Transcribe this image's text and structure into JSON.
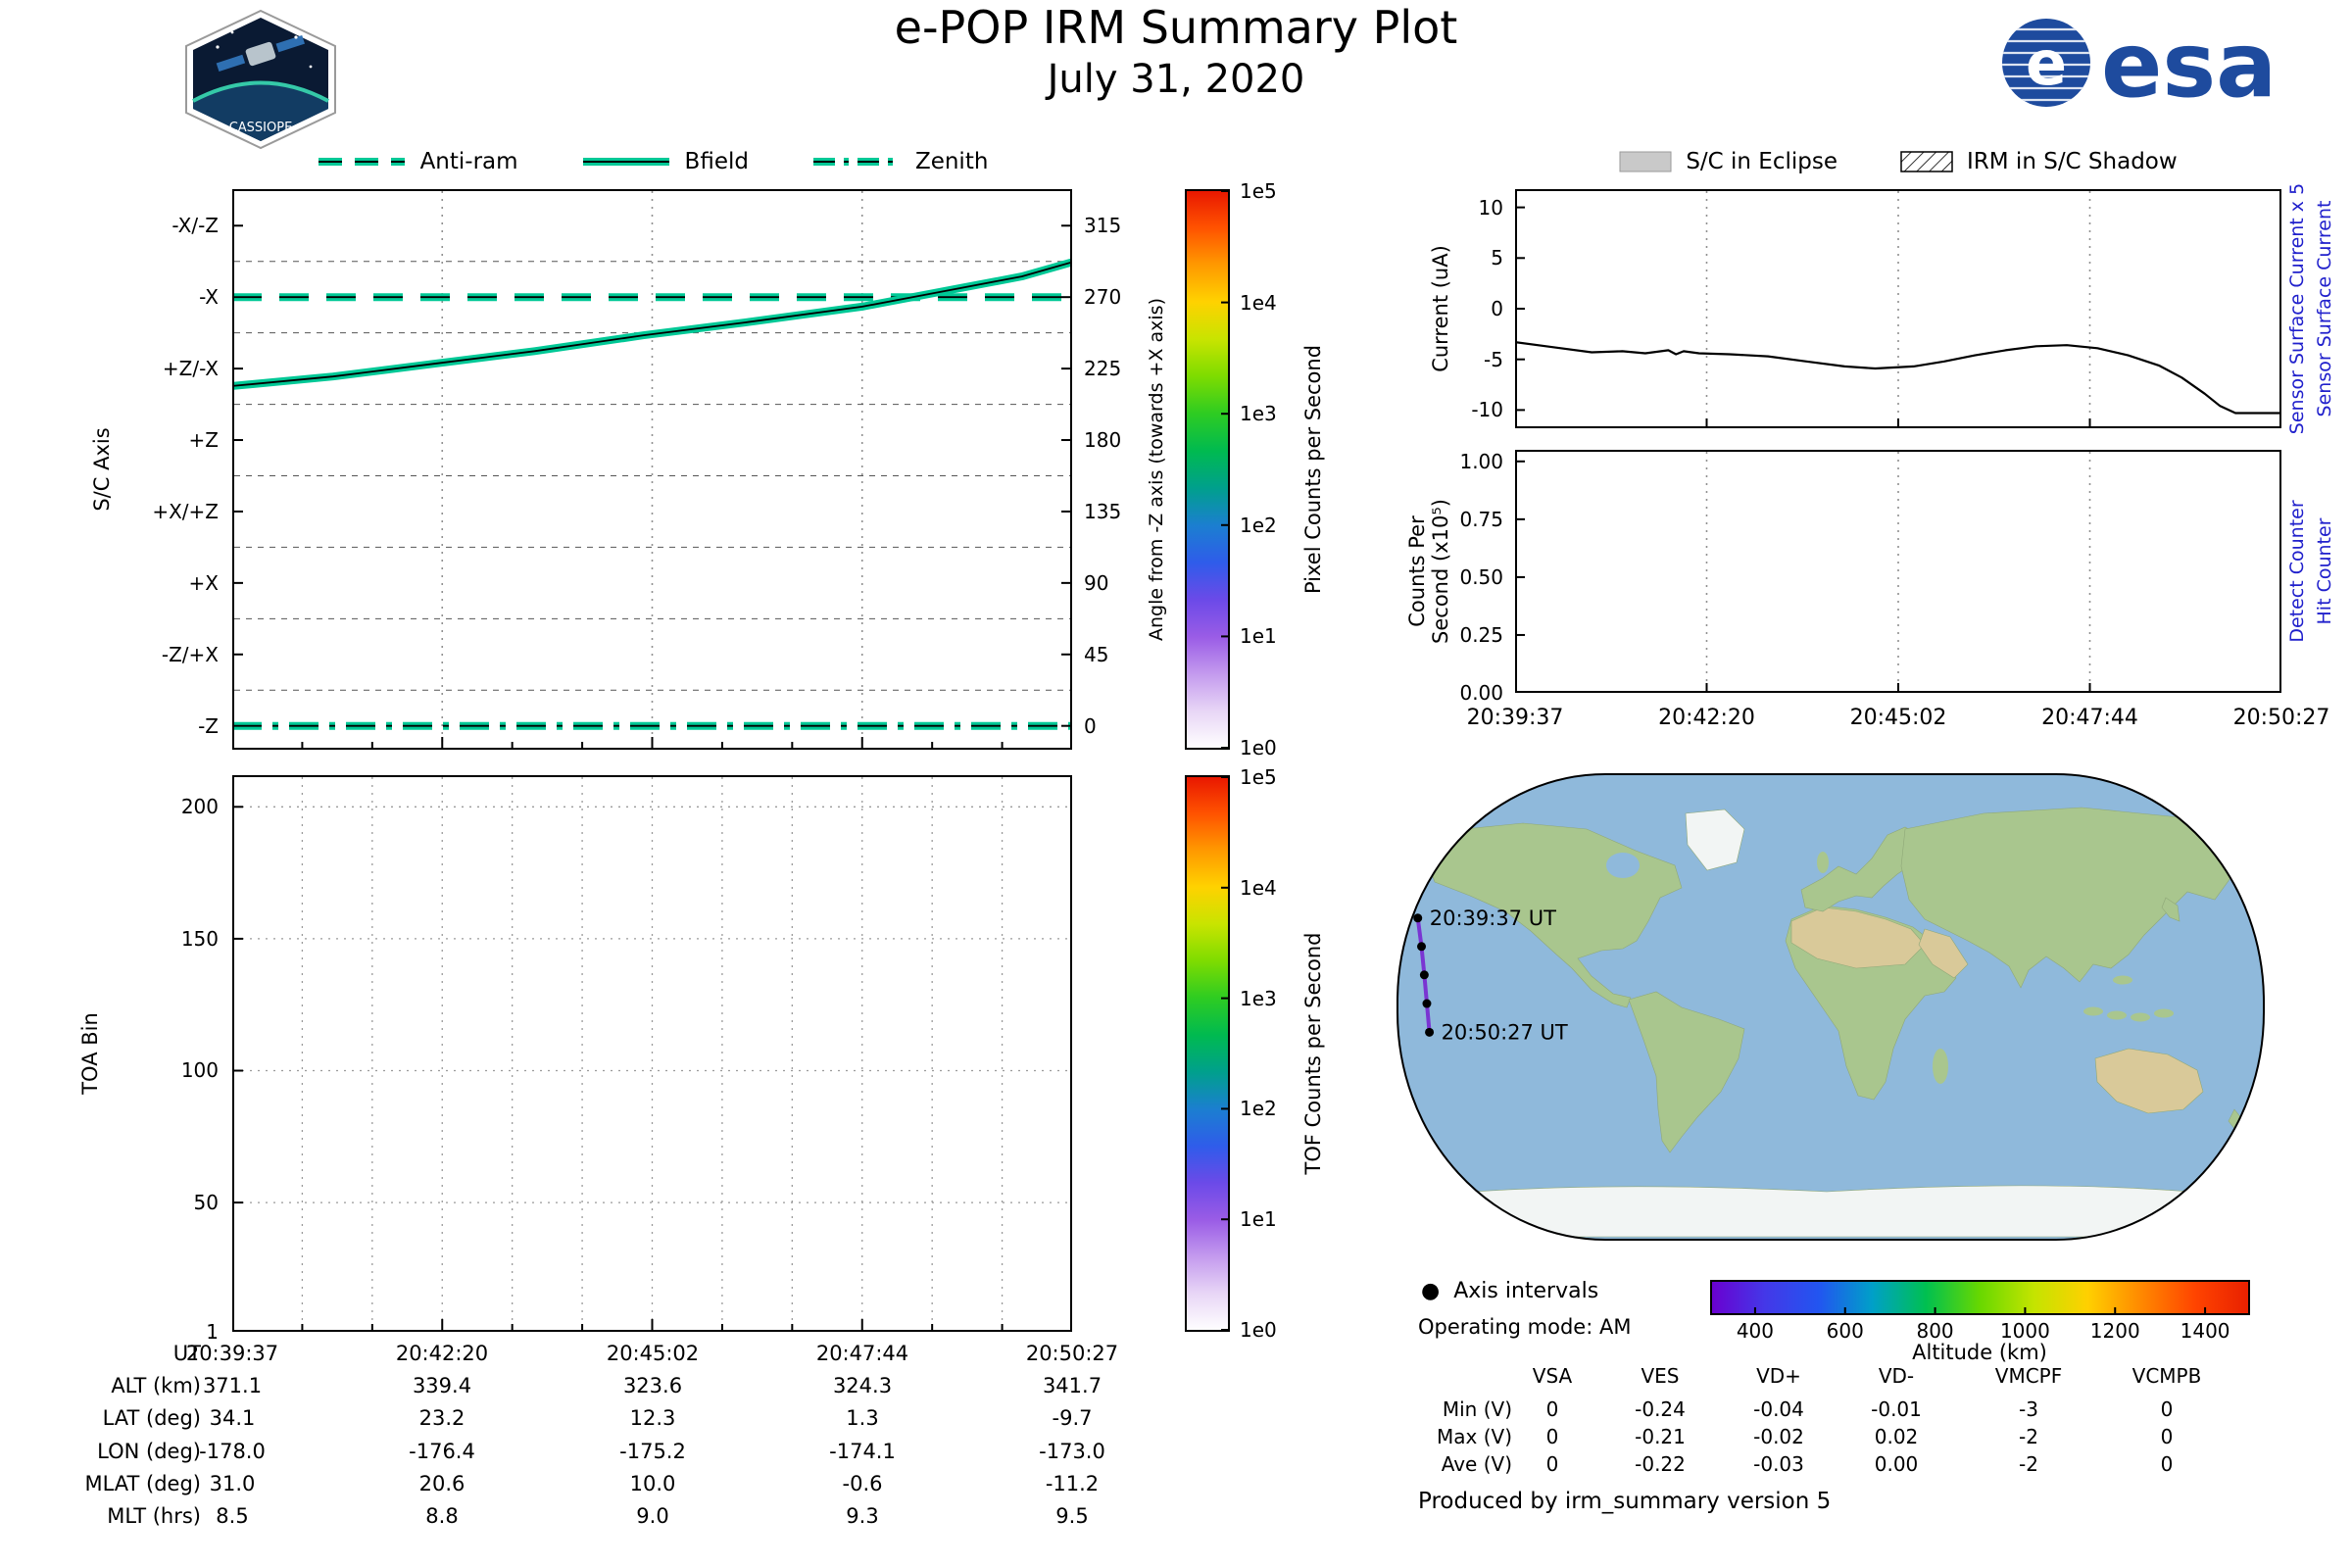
{
  "header": {
    "title": "e-POP IRM Summary Plot",
    "date": "July 31, 2020",
    "esa_wordmark": "esa",
    "patch_text": "CASSIOPE"
  },
  "legend_left": {
    "items": [
      {
        "label": "Anti-ram"
      },
      {
        "label": "Bfield"
      },
      {
        "label": "Zenith"
      }
    ]
  },
  "legend_right": {
    "items": [
      {
        "label": "S/C in Eclipse"
      },
      {
        "label": "IRM in S/C Shadow"
      }
    ]
  },
  "time_ticks": [
    "20:39:37",
    "20:42:20",
    "20:45:02",
    "20:47:44",
    "20:50:27"
  ],
  "chart_data": [
    {
      "id": "sc_axis",
      "type": "line",
      "ylabel": "S/C Axis",
      "ylabel_right": "Angle from -Z axis (towards +X axis)",
      "ylim": [
        -15,
        338
      ],
      "yticks_left": [
        {
          "value": 0,
          "label": "-Z"
        },
        {
          "value": 45,
          "label": "-Z/+X"
        },
        {
          "value": 90,
          "label": "+X"
        },
        {
          "value": 135,
          "label": "+X/+Z"
        },
        {
          "value": 180,
          "label": "+Z"
        },
        {
          "value": 225,
          "label": "+Z/-X"
        },
        {
          "value": 270,
          "label": "-X"
        },
        {
          "value": 315,
          "label": "-X/-Z"
        }
      ],
      "yticks_right": [
        0,
        45,
        90,
        135,
        180,
        225,
        270,
        315
      ],
      "grid_y_dashed": [
        22.5,
        67.5,
        112.5,
        157.5,
        202.5,
        247.5,
        292.5
      ],
      "series": [
        {
          "name": "Anti-ram",
          "style": "dashed",
          "x": [
            0,
            1
          ],
          "values": [
            270,
            270
          ]
        },
        {
          "name": "Bfield",
          "style": "solid",
          "x": [
            0,
            0.12,
            0.24,
            0.36,
            0.49,
            0.61,
            0.75,
            0.86,
            0.94,
            1.0
          ],
          "values": [
            214,
            220,
            228,
            236,
            246,
            254,
            264,
            275,
            283,
            292
          ]
        },
        {
          "name": "Zenith",
          "style": "dashdot",
          "x": [
            0,
            1
          ],
          "values": [
            0,
            0
          ]
        }
      ],
      "colorbar": {
        "label": "Pixel Counts per Second",
        "ticks": [
          "1e0",
          "1e1",
          "1e2",
          "1e3",
          "1e4",
          "1e5"
        ]
      }
    },
    {
      "id": "toa_bin",
      "type": "heatmap",
      "ylabel": "TOA Bin",
      "ylim": [
        1,
        212
      ],
      "yticks": [
        1,
        50,
        100,
        150,
        200
      ],
      "series": [],
      "colorbar": {
        "label": "TOF Counts per Second",
        "ticks": [
          "1e0",
          "1e1",
          "1e2",
          "1e3",
          "1e4",
          "1e5"
        ]
      }
    },
    {
      "id": "sensor_current",
      "type": "line",
      "ylabel": "Current (uA)",
      "right_labels": [
        "Sensor Surface Current x 5",
        "Sensor Surface Current"
      ],
      "ylim": [
        -11.8,
        11.8
      ],
      "yticks": [
        -10,
        -5,
        0,
        5,
        10
      ],
      "series": [
        {
          "name": "Sensor Surface Current",
          "color": "#000000",
          "x": [
            0,
            0.05,
            0.1,
            0.14,
            0.17,
            0.2,
            0.21,
            0.22,
            0.24,
            0.28,
            0.33,
            0.38,
            0.43,
            0.47,
            0.52,
            0.56,
            0.6,
            0.64,
            0.68,
            0.72,
            0.76,
            0.8,
            0.84,
            0.87,
            0.9,
            0.92,
            0.94,
            1.0
          ],
          "values": [
            -3.3,
            -3.8,
            -4.3,
            -4.2,
            -4.4,
            -4.1,
            -4.5,
            -4.2,
            -4.4,
            -4.5,
            -4.7,
            -5.2,
            -5.7,
            -5.9,
            -5.7,
            -5.2,
            -4.6,
            -4.1,
            -3.7,
            -3.6,
            -3.9,
            -4.6,
            -5.6,
            -6.8,
            -8.4,
            -9.6,
            -10.3,
            -10.3
          ]
        }
      ]
    },
    {
      "id": "hit_counts",
      "type": "line",
      "ylabel_line1": "Counts Per",
      "ylabel_line2": "Second (x10⁵)",
      "right_labels": [
        "Detect Counter",
        "Hit Counter"
      ],
      "ylim": [
        0,
        1.05
      ],
      "yticks": [
        "0.00",
        "0.25",
        "0.50",
        "0.75",
        "1.00"
      ],
      "series": [
        {
          "name": "Detect Counter",
          "color": "#00008b",
          "x": [
            0,
            1
          ],
          "values": [
            0,
            0
          ]
        }
      ]
    },
    {
      "id": "ground_track",
      "type": "scatter",
      "track": {
        "lons": [
          -178.0,
          -176.4,
          -175.2,
          -174.1,
          -173.0
        ],
        "lats": [
          34.1,
          23.2,
          12.3,
          1.3,
          -9.7
        ],
        "altitudes_km": [
          371.1,
          339.4,
          323.6,
          324.3,
          341.7
        ]
      },
      "labels": {
        "start": "20:39:37 UT",
        "end": "20:50:27 UT"
      },
      "legend": {
        "dot_label": "Axis intervals"
      },
      "colorbar": {
        "label": "Altitude (km)",
        "ticks": [
          400,
          600,
          800,
          1000,
          1200,
          1400
        ],
        "range": [
          300,
          1500
        ]
      }
    }
  ],
  "ephemeris_table": {
    "rows": [
      {
        "label": "UT",
        "values": [
          "20:39:37",
          "20:42:20",
          "20:45:02",
          "20:47:44",
          "20:50:27"
        ]
      },
      {
        "label": "ALT (km)",
        "values": [
          "371.1",
          "339.4",
          "323.6",
          "324.3",
          "341.7"
        ]
      },
      {
        "label": "LAT (deg)",
        "values": [
          "34.1",
          "23.2",
          "12.3",
          "1.3",
          "-9.7"
        ]
      },
      {
        "label": "LON (deg)",
        "values": [
          "-178.0",
          "-176.4",
          "-175.2",
          "-174.1",
          "-173.0"
        ]
      },
      {
        "label": "MLAT (deg)",
        "values": [
          "31.0",
          "20.6",
          "10.0",
          "-0.6",
          "-11.2"
        ]
      },
      {
        "label": "MLT (hrs)",
        "values": [
          "8.5",
          "8.8",
          "9.0",
          "9.3",
          "9.5"
        ]
      }
    ]
  },
  "voltage_table": {
    "columns": [
      "VSA",
      "VES",
      "VD+",
      "VD-",
      "VMCPF",
      "VCMPB"
    ],
    "rows": [
      {
        "label": "Min (V)",
        "values": [
          "0",
          "-0.24",
          "-0.04",
          "-0.01",
          "-3",
          "0"
        ]
      },
      {
        "label": "Max (V)",
        "values": [
          "0",
          "-0.21",
          "-0.02",
          "0.02",
          "-2",
          "0"
        ]
      },
      {
        "label": "Ave (V)",
        "values": [
          "0",
          "-0.22",
          "-0.03",
          "0.00",
          "-2",
          "0"
        ]
      }
    ]
  },
  "footer": {
    "operating_mode": "Operating mode: AM",
    "produced_by": "Produced by irm_summary version 5"
  },
  "colors": {
    "trace_teal": "#00c896",
    "counts_line": "#00008b",
    "current_line": "#000000",
    "blue_label": "#2020cc",
    "track_purple": "#7a35d2",
    "ocean": "#8fb9db",
    "land_green": "#a9c68e",
    "land_tan": "#d9c999",
    "ice": "#f2f5f4",
    "eclipse_gray": "#c9c9c9",
    "esa_blue": "#1e4b9e",
    "pixel_colormap": [
      "#ffffff",
      "#e8d6f6",
      "#c49bee",
      "#9a5ce6",
      "#6b4ae8",
      "#2f5cea",
      "#1b7fd0",
      "#00a08c",
      "#00ba50",
      "#2ecc22",
      "#7edc00",
      "#c8e400",
      "#ffd200",
      "#ff9800",
      "#ff5200",
      "#e81600"
    ],
    "altitude_colormap": [
      "#6a00d0",
      "#4438e8",
      "#2255f0",
      "#00a0c8",
      "#00c050",
      "#68d800",
      "#c4e400",
      "#ffd000",
      "#ff8800",
      "#ff4400",
      "#e82000"
    ]
  }
}
